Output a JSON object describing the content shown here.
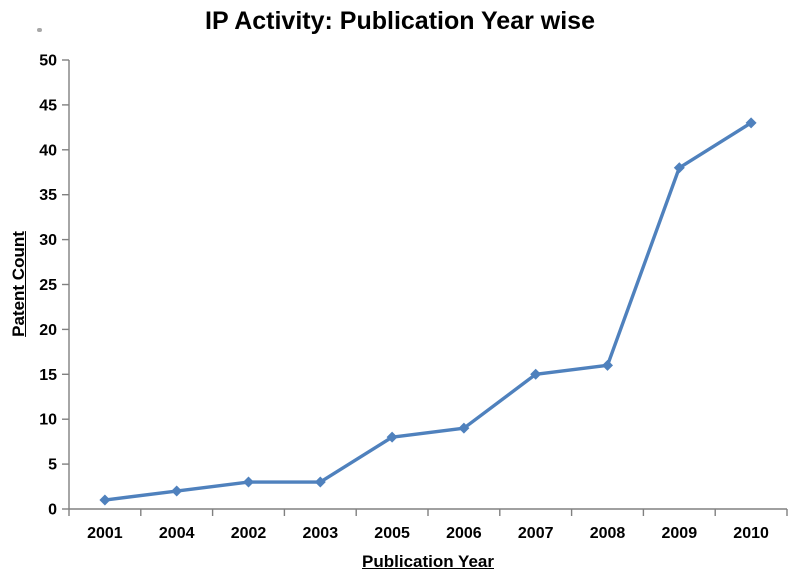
{
  "page": {
    "background_color": "#ffffff",
    "text_color": "#000000"
  },
  "chart_data": {
    "type": "line",
    "title": "IP Activity: Publication Year wise",
    "xlabel": "Publication Year",
    "ylabel": "Patent Count",
    "categories": [
      "2001",
      "2004",
      "2002",
      "2003",
      "2005",
      "2006",
      "2007",
      "2008",
      "2009",
      "2010"
    ],
    "values": [
      1,
      2,
      3,
      3,
      8,
      9,
      15,
      16,
      38,
      43
    ],
    "ylim": [
      0,
      50
    ],
    "ytick_step": 5,
    "ytick_labels": [
      "0",
      "5",
      "10",
      "15",
      "20",
      "25",
      "30",
      "35",
      "40",
      "45",
      "50"
    ],
    "grid": false,
    "legend": "none",
    "marker": "diamond",
    "line_color": "#4f81bd",
    "axis_color": "#808080",
    "label_color": "#000000"
  }
}
